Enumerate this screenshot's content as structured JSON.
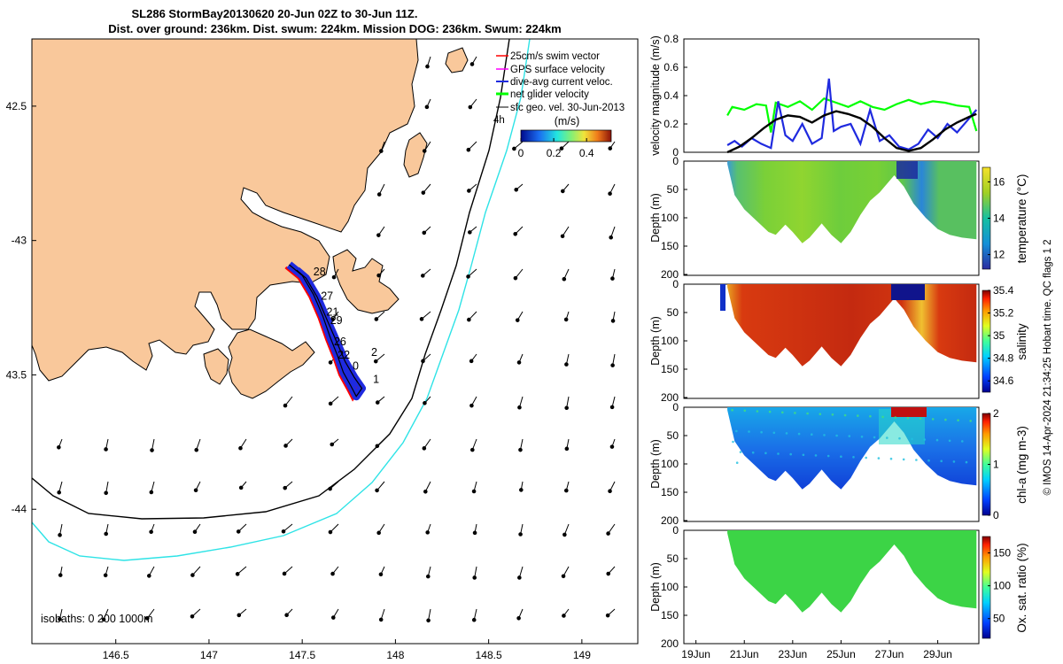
{
  "title_line1": "SL286 StormBay20130620 20-Jun 02Z to 30-Jun 11Z.",
  "title_line2": "Dist. over ground: 236km. Dist. swum: 224km. Mission DOG: 236km. Swum: 224km",
  "credit": "© IMOS 14-Apr-2024 21:34:25 Hobart time. QC flags 1  2",
  "colors": {
    "land": "#f9c89b",
    "track": "#1f2adf",
    "swim": "#ff0000",
    "gps": "#ff00ff",
    "net": "#00ff00",
    "isobath200": "#000000",
    "isobath1000": "#2ee3e6",
    "current": "#1111cc",
    "model": "#000000"
  },
  "chart_data": [
    {
      "type": "map",
      "xlim": [
        146.05,
        149.3
      ],
      "ylim": [
        -44.5,
        -42.25
      ],
      "xticks": [
        146.5,
        147,
        147.5,
        148,
        148.5,
        149
      ],
      "xtick_labels": [
        "146.5",
        "147",
        "147.5",
        "148",
        "148.5",
        "149"
      ],
      "yticks": [
        -42.5,
        -43,
        -43.5,
        -44
      ],
      "ytick_labels": [
        "42.5",
        "-43",
        "43.5",
        "-44"
      ],
      "legend": [
        {
          "label": "25cm/s swim vector",
          "color": "#ff0000"
        },
        {
          "label": "GPS surface velocity",
          "color": "#ff00ff"
        },
        {
          "label": "dive-avg current veloc.",
          "color": "#1f2adf"
        },
        {
          "label": "net glider velocity",
          "color": "#00ff00"
        },
        {
          "label": "sfc geo. vel. 30-Jun-2013",
          "color": "#000000"
        }
      ],
      "legend_extra": "4h",
      "colorbar": {
        "unit": "(m/s)",
        "ticks": [
          0,
          0.2,
          0.4
        ],
        "tick_labels": [
          "0",
          "0.2",
          "0.4"
        ],
        "range": [
          0,
          0.55
        ]
      },
      "isobath_label": "isobaths: 0   200  1000m",
      "track": [
        [
          147.43,
          -43.09
        ],
        [
          147.5,
          -43.13
        ],
        [
          147.56,
          -43.2
        ],
        [
          147.61,
          -43.28
        ],
        [
          147.65,
          -43.36
        ],
        [
          147.69,
          -43.43
        ],
        [
          147.72,
          -43.49
        ],
        [
          147.76,
          -43.54
        ],
        [
          147.79,
          -43.58
        ],
        [
          147.82,
          -43.55
        ],
        [
          147.78,
          -43.51
        ],
        [
          147.73,
          -43.45
        ],
        [
          147.68,
          -43.37
        ],
        [
          147.63,
          -43.29
        ],
        [
          147.58,
          -43.21
        ],
        [
          147.52,
          -43.14
        ],
        [
          147.47,
          -43.11
        ]
      ],
      "day_labels": [
        {
          "text": "28",
          "lon": 147.56,
          "lat": -43.13
        },
        {
          "text": "27",
          "lon": 147.6,
          "lat": -43.22
        },
        {
          "text": "21",
          "lon": 147.63,
          "lat": -43.28
        },
        {
          "text": "29",
          "lon": 147.65,
          "lat": -43.31
        },
        {
          "text": "26",
          "lon": 147.67,
          "lat": -43.39
        },
        {
          "text": "22",
          "lon": 147.69,
          "lat": -43.44
        },
        {
          "text": "2",
          "lon": 147.87,
          "lat": -43.43
        },
        {
          "text": "0",
          "lon": 147.77,
          "lat": -43.48
        },
        {
          "text": "1",
          "lon": 147.88,
          "lat": -43.53
        }
      ]
    },
    {
      "type": "line",
      "ylabel": "velocity magnitude (m/s)",
      "ylim": [
        0,
        0.8
      ],
      "yticks": [
        0,
        0.2,
        0.4,
        0.6,
        0.8
      ],
      "ytick_labels": [
        "0",
        "0.2",
        "0.4",
        "0.6",
        "0.8"
      ],
      "xlim_days": [
        18.5,
        30.7
      ],
      "series": [
        {
          "color": "#00ff00",
          "x": [
            20.3,
            20.5,
            21,
            21.5,
            21.9,
            22.1,
            22.3,
            22.8,
            23.3,
            23.8,
            24.3,
            24.8,
            25.3,
            25.8,
            26.3,
            26.8,
            27.3,
            27.8,
            28.3,
            28.8,
            29.3,
            29.8,
            30.3,
            30.6
          ],
          "values": [
            0.26,
            0.32,
            0.3,
            0.34,
            0.33,
            0.14,
            0.35,
            0.32,
            0.36,
            0.3,
            0.38,
            0.35,
            0.32,
            0.36,
            0.32,
            0.3,
            0.34,
            0.37,
            0.34,
            0.36,
            0.35,
            0.33,
            0.32,
            0.15
          ]
        },
        {
          "color": "#1f2adf",
          "x": [
            20.3,
            20.6,
            20.9,
            21.3,
            21.7,
            22.1,
            22.4,
            22.7,
            23,
            23.4,
            23.8,
            24.2,
            24.5,
            24.7,
            25,
            25.4,
            25.8,
            26.2,
            26.6,
            27,
            27.4,
            27.8,
            28.2,
            28.6,
            29,
            29.4,
            29.8,
            30.2,
            30.6
          ],
          "values": [
            0.05,
            0.08,
            0.04,
            0.1,
            0.06,
            0.03,
            0.36,
            0.12,
            0.08,
            0.2,
            0.06,
            0.1,
            0.52,
            0.15,
            0.18,
            0.2,
            0.06,
            0.3,
            0.08,
            0.12,
            0.04,
            0.02,
            0.06,
            0.16,
            0.1,
            0.2,
            0.14,
            0.22,
            0.3
          ]
        },
        {
          "color": "#000000",
          "x": [
            20.3,
            20.8,
            21.3,
            21.8,
            22.3,
            22.8,
            23.3,
            23.8,
            24.3,
            24.8,
            25.3,
            25.8,
            26.3,
            26.8,
            27.3,
            27.8,
            28.3,
            28.8,
            29.3,
            29.8,
            30.3,
            30.6
          ],
          "values": [
            0.0,
            0.04,
            0.1,
            0.17,
            0.23,
            0.26,
            0.25,
            0.21,
            0.26,
            0.29,
            0.27,
            0.24,
            0.18,
            0.1,
            0.03,
            0.01,
            0.03,
            0.09,
            0.16,
            0.21,
            0.25,
            0.27
          ]
        }
      ]
    },
    {
      "type": "heatmap",
      "ylabel": "Depth (m)",
      "clabel": "temperature (°C)",
      "ylim": [
        200,
        0
      ],
      "yticks": [
        0,
        50,
        100,
        150,
        200
      ],
      "ytick_labels": [
        "0",
        "50",
        "100",
        "150",
        "200"
      ],
      "clim": [
        11.2,
        16.8
      ],
      "cticks": [
        12,
        14,
        16
      ],
      "ctick_labels": [
        "12",
        "14",
        "16"
      ],
      "colormap": "parula"
    },
    {
      "type": "heatmap",
      "ylabel": "Depth (m)",
      "clabel": "salinity",
      "ylim": [
        200,
        0
      ],
      "yticks": [
        0,
        50,
        100,
        150,
        200
      ],
      "ytick_labels": [
        "0",
        "50",
        "100",
        "150",
        "200"
      ],
      "clim": [
        34.5,
        35.4
      ],
      "cticks": [
        34.6,
        34.8,
        35,
        35.2,
        35.4
      ],
      "ctick_labels": [
        "34.6",
        "34.8",
        "35",
        "35.2",
        "35.4"
      ],
      "colormap": "jet"
    },
    {
      "type": "heatmap",
      "ylabel": "Depth (m)",
      "clabel": "chl-a (mg m-3)",
      "ylim": [
        200,
        0
      ],
      "yticks": [
        0,
        50,
        100,
        150,
        200
      ],
      "ytick_labels": [
        "0",
        "50",
        "100",
        "150",
        "200"
      ],
      "clim": [
        0,
        2
      ],
      "cticks": [
        0,
        1,
        2
      ],
      "ctick_labels": [
        "0",
        "1",
        "2"
      ],
      "colormap": "jet"
    },
    {
      "type": "heatmap",
      "ylabel": "Depth (m)",
      "clabel": "Ox. sat. ratio (%)",
      "ylim": [
        200,
        0
      ],
      "yticks": [
        0,
        50,
        100,
        150,
        200
      ],
      "ytick_labels": [
        "0",
        "50",
        "100",
        "150",
        "200"
      ],
      "clim": [
        20,
        175
      ],
      "cticks": [
        50,
        100,
        150
      ],
      "ctick_labels": [
        "50",
        "100",
        "150"
      ],
      "colormap": "jet",
      "xticks_days": [
        19,
        21,
        23,
        25,
        27,
        29
      ],
      "xtick_labels": [
        "19Jun",
        "21Jun",
        "23Jun",
        "25Jun",
        "27Jun",
        "29Jun"
      ]
    }
  ]
}
